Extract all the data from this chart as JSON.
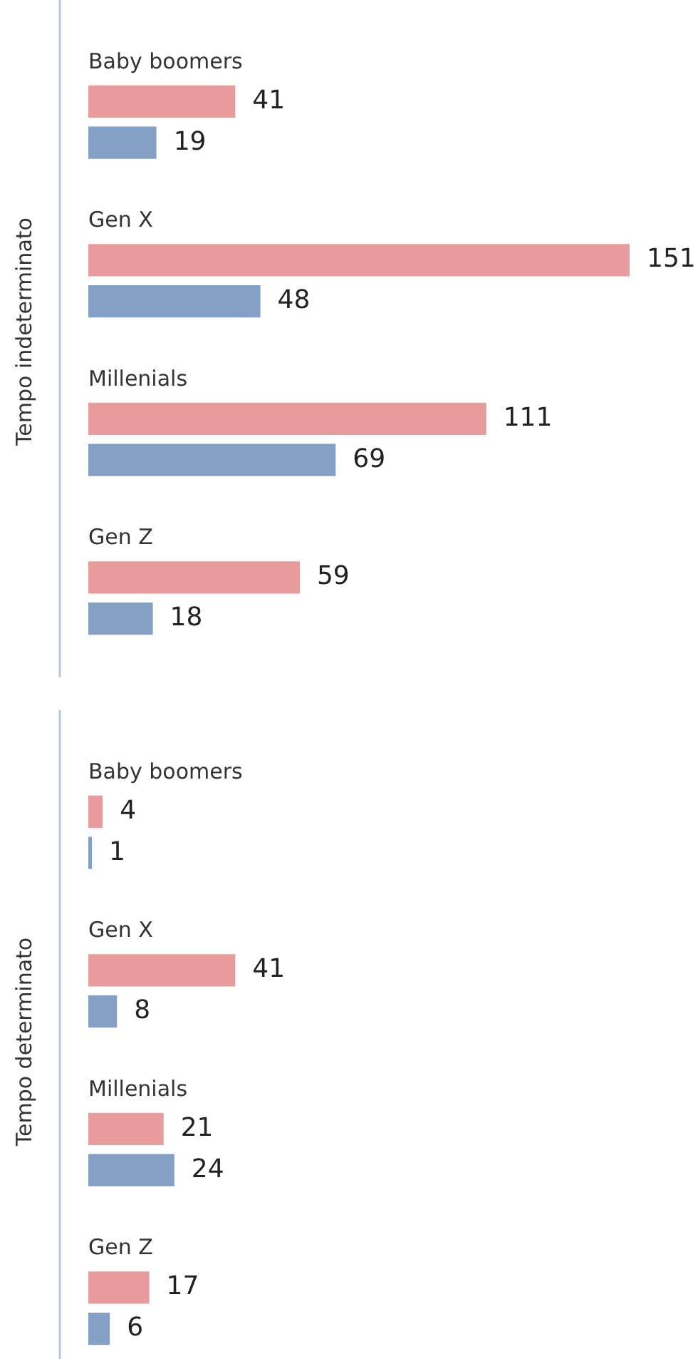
{
  "chart_data": [
    {
      "type": "bar",
      "orientation": "horizontal",
      "ylabel": "Tempo indeterminato",
      "categories": [
        "Baby boomers",
        "Gen X",
        "Millenials",
        "Gen Z"
      ],
      "tick_labels": "y",
      "data_labels": true,
      "series": [
        {
          "color": "#e89c9c",
          "values": [
            41,
            151,
            111,
            59
          ]
        },
        {
          "color": "#84a0c4",
          "values": [
            19,
            48,
            69,
            18
          ]
        }
      ]
    },
    {
      "type": "bar",
      "orientation": "horizontal",
      "ylabel": "Tempo determinato",
      "categories": [
        "Baby boomers",
        "Gen X",
        "Millenials",
        "Gen Z"
      ],
      "tick_labels": "y",
      "data_labels": true,
      "series": [
        {
          "color": "#e89c9c",
          "values": [
            4,
            41,
            21,
            17
          ]
        },
        {
          "color": "#84a0c4",
          "values": [
            1,
            8,
            24,
            6
          ]
        }
      ]
    }
  ]
}
